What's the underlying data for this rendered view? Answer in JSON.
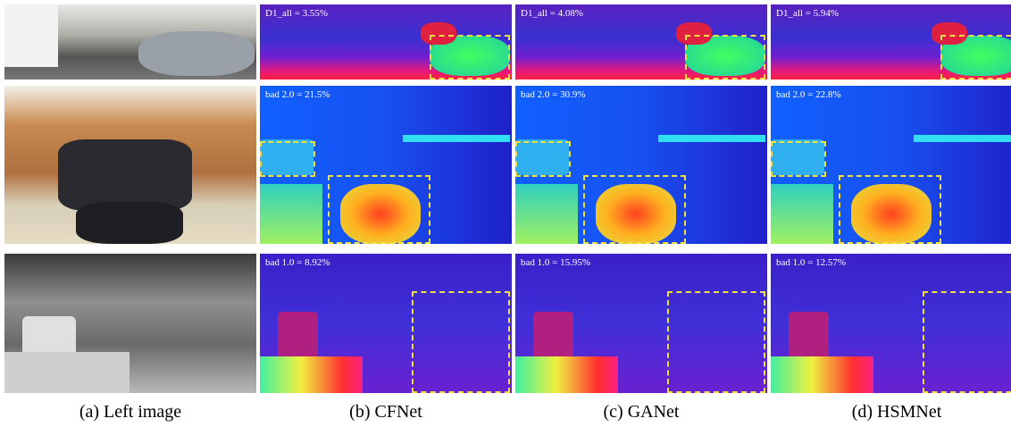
{
  "columns": [
    {
      "caption": "(a) Left image"
    },
    {
      "caption": "(b) CFNet",
      "labels": [
        "D1_all = 3.55%",
        "bad 2.0 = 21.5%",
        "bad 1.0 = 8.92%"
      ]
    },
    {
      "caption": "(c) GANet",
      "labels": [
        "D1_all = 4.08%",
        "bad 2.0 = 30.9%",
        "bad 1.0 = 15.95%"
      ]
    },
    {
      "caption": "(d) HSMNet",
      "labels": [
        "D1_all = 5.94%",
        "bad 2.0 = 22.8%",
        "bad 1.0 = 12.57%"
      ]
    }
  ]
}
